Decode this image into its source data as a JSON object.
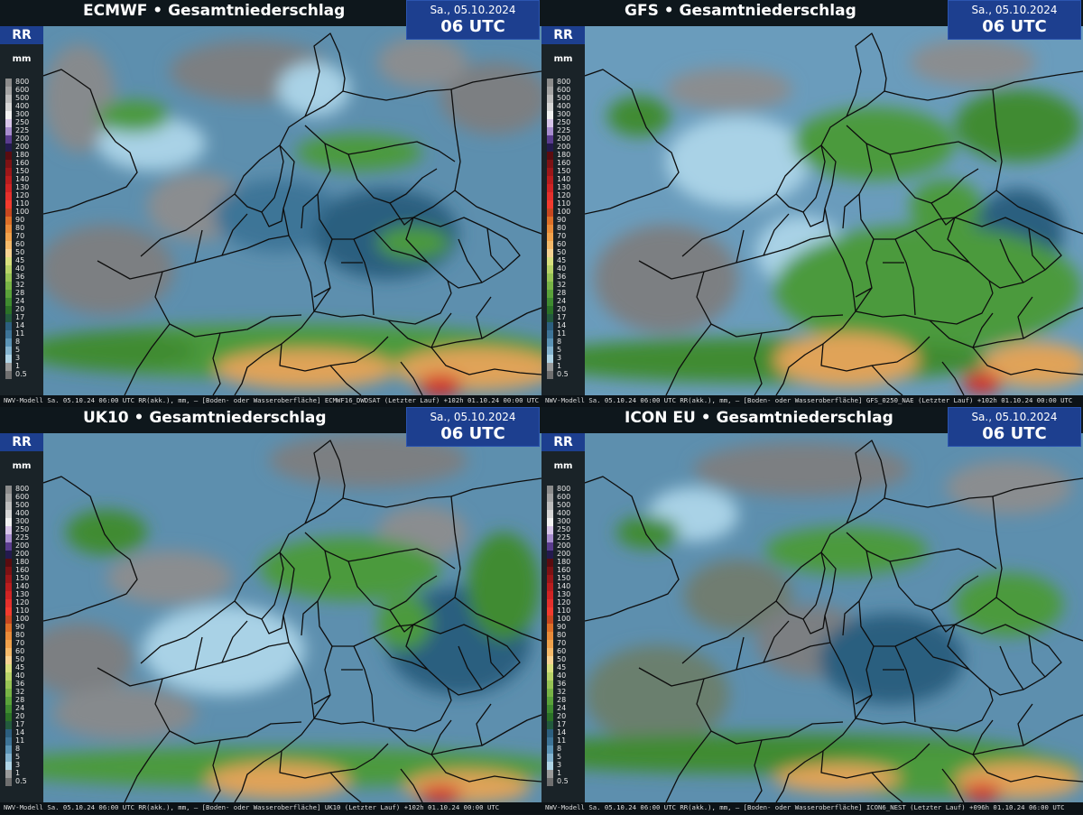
{
  "colors": {
    "ocean_base": "#5d8fae",
    "grey_dry": "#7c7f82",
    "light_blue": "#a9d2e6",
    "dark_blue": "#2c5f7f",
    "green": "#4c9a3c",
    "dark_green": "#2a6b24",
    "orange": "#e0a358",
    "red": "#d42a27",
    "borders": "#0d0d0d",
    "time_box": "#1d3f8f"
  },
  "legend": {
    "code": "RR",
    "unit": "mm",
    "scale": [
      {
        "label": "800",
        "color": "#8c8c8c"
      },
      {
        "label": "600",
        "color": "#a3a3a3"
      },
      {
        "label": "500",
        "color": "#bdbdbd"
      },
      {
        "label": "400",
        "color": "#d6d6d6"
      },
      {
        "label": "300",
        "color": "#f2f2f2"
      },
      {
        "label": "250",
        "color": "#d8c6ea"
      },
      {
        "label": "225",
        "color": "#a88dcf"
      },
      {
        "label": "200",
        "color": "#5a3c8e"
      },
      {
        "label": "200",
        "color": "#241a4e"
      },
      {
        "label": "180",
        "color": "#5a0c10"
      },
      {
        "label": "160",
        "color": "#7d1214"
      },
      {
        "label": "150",
        "color": "#9c1719"
      },
      {
        "label": "140",
        "color": "#b81d1e"
      },
      {
        "label": "130",
        "color": "#cf2424"
      },
      {
        "label": "120",
        "color": "#e4302c"
      },
      {
        "label": "110",
        "color": "#f23b2e"
      },
      {
        "label": "100",
        "color": "#c7471f"
      },
      {
        "label": "90",
        "color": "#dd6f28"
      },
      {
        "label": "80",
        "color": "#e98b39"
      },
      {
        "label": "70",
        "color": "#f0a24c"
      },
      {
        "label": "60",
        "color": "#f5ba6a"
      },
      {
        "label": "50",
        "color": "#f7d392"
      },
      {
        "label": "45",
        "color": "#d9e07e"
      },
      {
        "label": "40",
        "color": "#b8d368"
      },
      {
        "label": "36",
        "color": "#97c455"
      },
      {
        "label": "32",
        "color": "#78b446"
      },
      {
        "label": "28",
        "color": "#5aa23a"
      },
      {
        "label": "24",
        "color": "#3f8b30"
      },
      {
        "label": "20",
        "color": "#2b7227"
      },
      {
        "label": "17",
        "color": "#235a3e"
      },
      {
        "label": "14",
        "color": "#2c5f7f"
      },
      {
        "label": "11",
        "color": "#3d7497"
      },
      {
        "label": "8",
        "color": "#5b94b6"
      },
      {
        "label": "5",
        "color": "#84b4cf"
      },
      {
        "label": "3",
        "color": "#b0d5e6"
      },
      {
        "label": "1",
        "color": "#9a9a9a"
      },
      {
        "label": "0.5",
        "color": "#6f6f6f"
      }
    ]
  },
  "panels": [
    {
      "title": "ECMWF • Gesamtniederschlag",
      "date": "Sa., 05.10.2024",
      "utc": "06 UTC",
      "footer": "NWV-Modell  Sa. 05.10.24 06:00 UTC  RR(akk.), mm, — [Boden- oder Wasseroberfläche] ECMWF16_DWDSAT (Letzter Lauf) +102h  01.10.24 00:00 UTC"
    },
    {
      "title": "GFS • Gesamtniederschlag",
      "date": "Sa., 05.10.2024",
      "utc": "06 UTC",
      "footer": "NWV-Modell  Sa. 05.10.24 06:00 UTC  RR(akk.), mm, — [Boden- oder Wasseroberfläche] GFS_0250_NAE (Letzter Lauf) +102h  01.10.24 00:00 UTC"
    },
    {
      "title": "UK10 • Gesamtniederschlag",
      "date": "Sa., 05.10.2024",
      "utc": "06 UTC",
      "footer": "NWV-Modell  Sa. 05.10.24 06:00 UTC  RR(akk.), mm, — [Boden- oder Wasseroberfläche] UK10 (Letzter Lauf) +102h  01.10.24 00:00 UTC"
    },
    {
      "title": "ICON EU • Gesamtniederschlag",
      "date": "Sa., 05.10.2024",
      "utc": "06 UTC",
      "footer": "NWV-Modell  Sa. 05.10.24 06:00 UTC  RR(akk.), mm, — [Boden- oder Wasseroberfläche] ICON6_NEST (Letzter Lauf) +096h  01.10.24 06:00 UTC"
    }
  ]
}
